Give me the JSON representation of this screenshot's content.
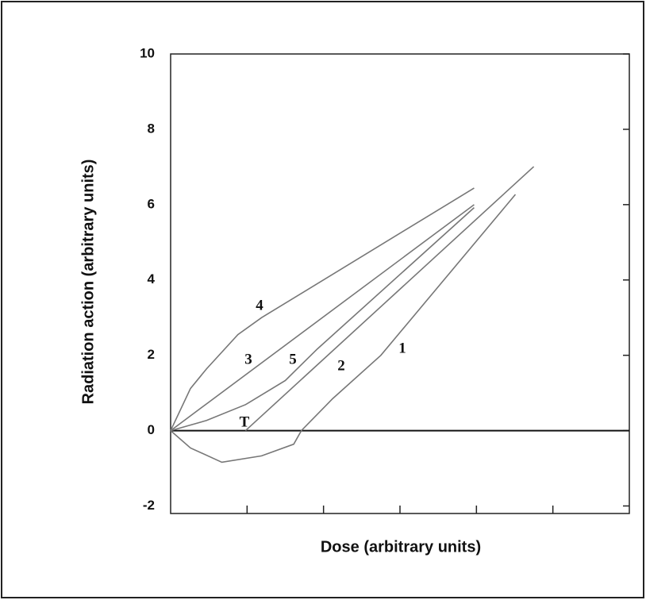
{
  "chart_data": {
    "type": "line",
    "xlabel": "Dose (arbitrary units)",
    "ylabel": "Radiation action (arbitrary units)",
    "xlim": [
      0,
      6
    ],
    "xticks": [
      1,
      2,
      3,
      4,
      5
    ],
    "ylim": [
      -2.2,
      10
    ],
    "yticks": [
      -2,
      0,
      2,
      4,
      6,
      8,
      10
    ],
    "annotations": [
      "T"
    ],
    "series": [
      {
        "name": "1",
        "color": "#777777",
        "x": [
          0,
          0.26,
          0.67,
          1.19,
          1.61,
          1.71,
          2.12,
          2.75,
          4.51
        ],
        "values": [
          0,
          -0.46,
          -0.84,
          -0.67,
          -0.36,
          0,
          0.85,
          2.0,
          6.27
        ]
      },
      {
        "name": "2",
        "color": "#777777",
        "x": [
          0.98,
          4.75
        ],
        "values": [
          0,
          7.01
        ]
      },
      {
        "name": "3",
        "color": "#777777",
        "x": [
          0,
          3.97
        ],
        "values": [
          0,
          6.0
        ]
      },
      {
        "name": "4",
        "color": "#777777",
        "x": [
          0,
          0.26,
          0.47,
          0.88,
          1.19,
          3.97
        ],
        "values": [
          0,
          1.12,
          1.64,
          2.55,
          3.0,
          6.44
        ]
      },
      {
        "name": "5",
        "color": "#777777",
        "x": [
          0,
          0.47,
          0.98,
          1.5,
          1.92,
          3.97
        ],
        "values": [
          0,
          0.27,
          0.69,
          1.33,
          2.17,
          5.92
        ]
      }
    ]
  }
}
